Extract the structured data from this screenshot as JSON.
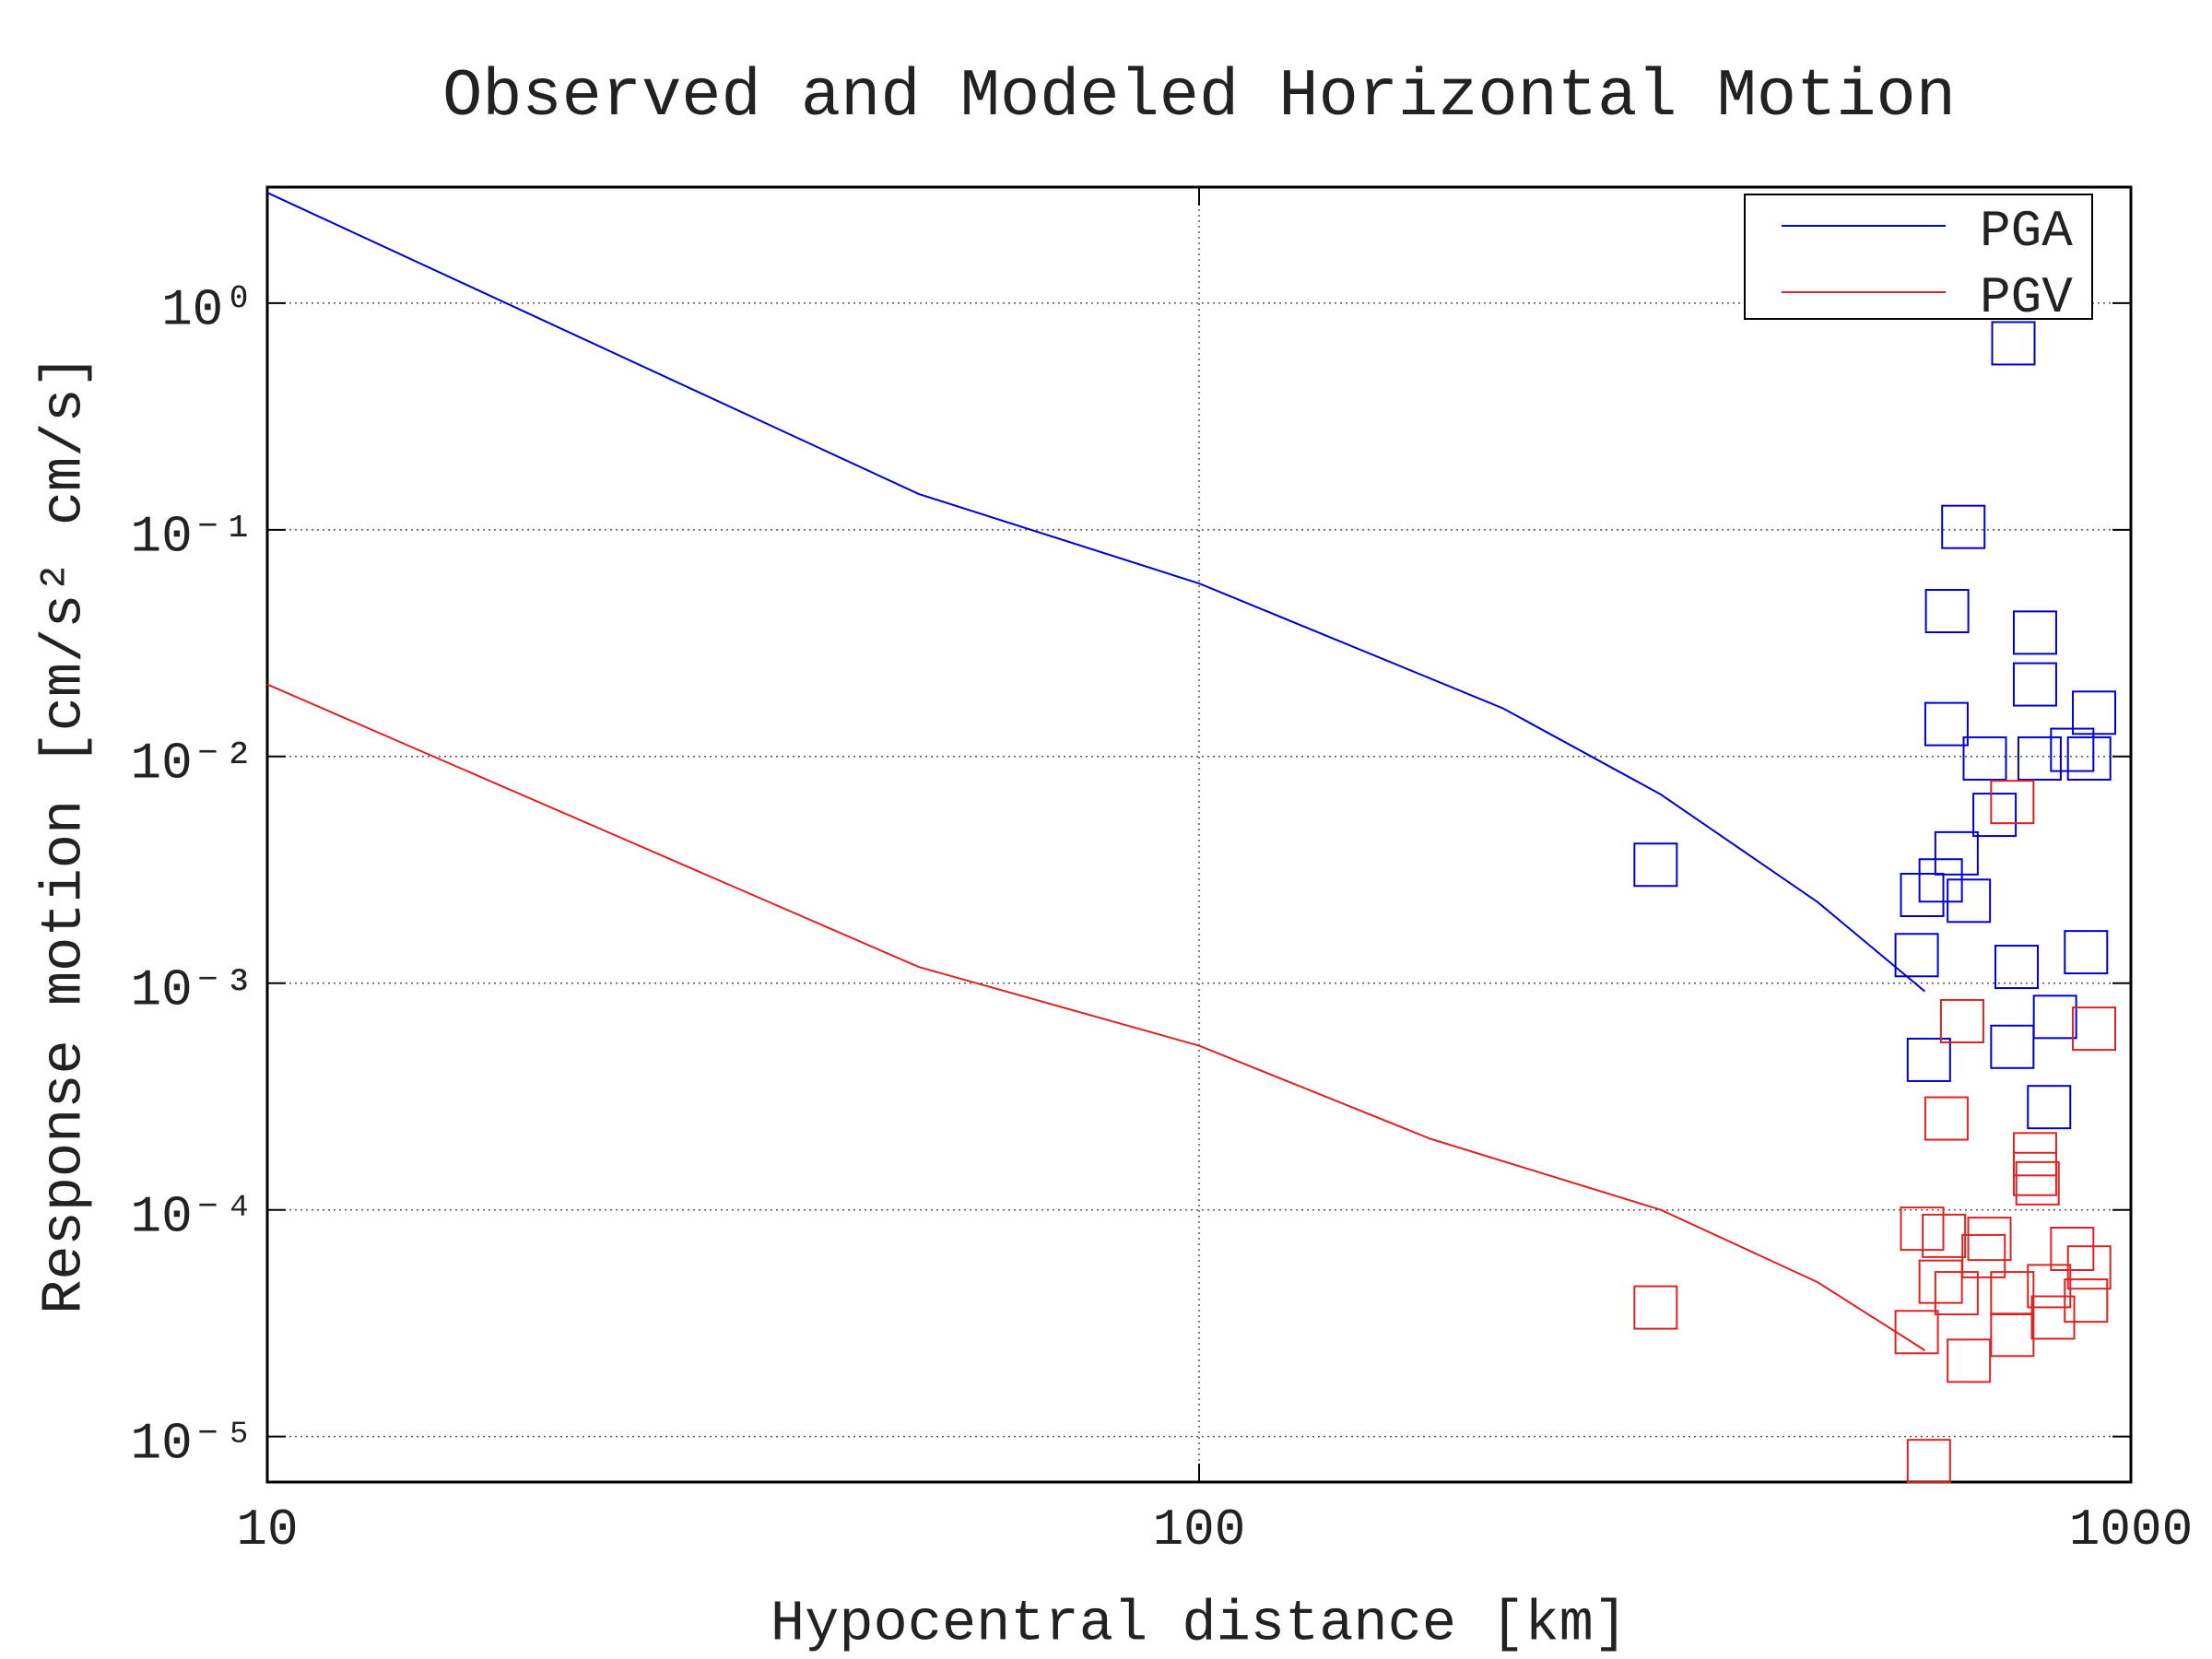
{
  "chart_data": {
    "type": "line",
    "title": "Observed and Modeled Horizontal Motion",
    "x_label": "Hypocentral distance [km]",
    "y_label": "Response motion [cm/s² cm/s]",
    "xscale": "log",
    "yscale": "log",
    "xlim": [
      10,
      1000
    ],
    "ylim": [
      6.3e-06,
      3.25
    ],
    "xticks": [
      10,
      100,
      1000
    ],
    "yticks": [
      {
        "value": 1,
        "label": "10⁰"
      },
      {
        "value": 0.1,
        "label": "10⁻¹"
      },
      {
        "value": 0.01,
        "label": "10⁻²"
      },
      {
        "value": 0.001,
        "label": "10⁻³"
      },
      {
        "value": 0.0001,
        "label": "10⁻⁴"
      },
      {
        "value": 1e-05,
        "label": "10⁻⁵"
      }
    ],
    "grid": true,
    "legend": "upper right",
    "series": [
      {
        "name": "PGA",
        "color": "#0000cc",
        "x": [
          10,
          50,
          100,
          212,
          313,
          461,
          601
        ],
        "values": [
          3.07,
          0.144,
          0.058,
          0.0163,
          0.0068,
          0.00228,
          0.00092
        ],
        "scatter_x": [
          309,
          748,
          661,
          635,
          789,
          789,
          913,
          634,
          697,
          798,
          865,
          902,
          714,
          650,
          625,
          597,
          670,
          589,
          754,
          895,
          829,
          746,
          607,
          817
        ],
        "scatter_y": [
          0.00333,
          0.665,
          0.103,
          0.0438,
          0.0352,
          0.0208,
          0.0156,
          0.0139,
          0.0098,
          0.0098,
          0.0107,
          0.0098,
          0.00553,
          0.00374,
          0.00284,
          0.00245,
          0.00231,
          0.00133,
          0.00118,
          0.00137,
          0.00071,
          0.000524,
          0.000459,
          0.000284
        ]
      },
      {
        "name": "PGV",
        "color": "#dd2222",
        "x": [
          10,
          50,
          100,
          177,
          313,
          461,
          601
        ],
        "values": [
          0.0208,
          0.00118,
          0.00053,
          0.000206,
          0.0001,
          4.8e-05,
          2.4e-05
        ],
        "scatter_x": [
          309,
          746,
          659,
          913,
          634,
          789,
          794,
          789,
          597,
          630,
          705,
          695,
          865,
          902,
          625,
          650,
          746,
          817,
          895,
          825,
          589,
          746,
          670,
          607
        ],
        "scatter_y": [
          3.71e-05,
          0.0063,
          0.00068,
          0.00063,
          0.000253,
          0.000176,
          0.000131,
          0.000144,
          8.26e-05,
          7.68e-05,
          7.45e-05,
          6.25e-05,
          6.73e-05,
          5.57e-05,
          4.82e-05,
          4.29e-05,
          4.29e-05,
          4.61e-05,
          3.98e-05,
          3.35e-05,
          2.89e-05,
          2.81e-05,
          2.16e-05,
          7.8e-06
        ]
      }
    ]
  }
}
